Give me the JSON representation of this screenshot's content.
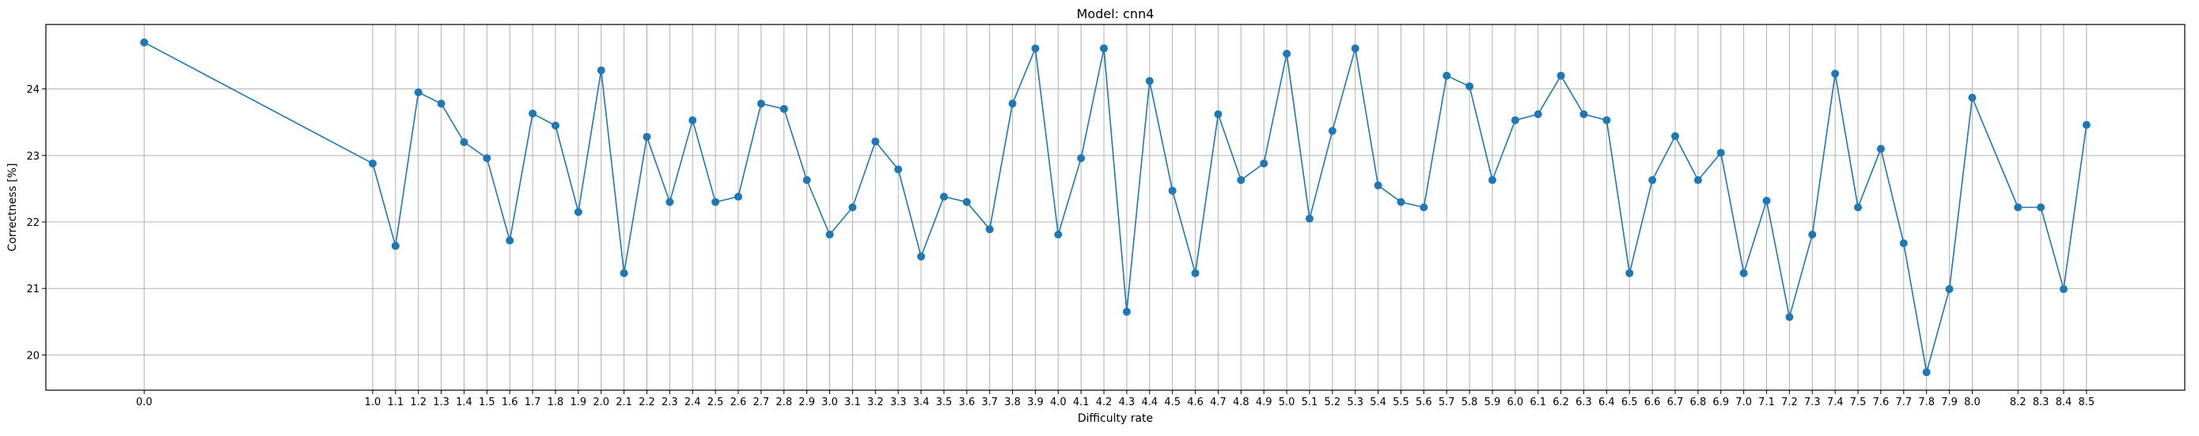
{
  "chart_data": {
    "type": "line",
    "title": "Model: cnn4",
    "xlabel": "Difficulty rate",
    "ylabel": "Correctness [%]",
    "xlim": [
      -0.43,
      8.93
    ],
    "ylim": [
      19.47,
      24.97
    ],
    "xticks": [
      "0.0",
      "1.0",
      "1.1",
      "1.2",
      "1.3",
      "1.4",
      "1.5",
      "1.6",
      "1.7",
      "1.8",
      "1.9",
      "2.0",
      "2.1",
      "2.2",
      "2.3",
      "2.4",
      "2.5",
      "2.6",
      "2.7",
      "2.8",
      "2.9",
      "3.0",
      "3.1",
      "3.2",
      "3.3",
      "3.4",
      "3.5",
      "3.6",
      "3.7",
      "3.8",
      "3.9",
      "4.0",
      "4.1",
      "4.2",
      "4.3",
      "4.4",
      "4.5",
      "4.6",
      "4.7",
      "4.8",
      "4.9",
      "5.0",
      "5.1",
      "5.2",
      "5.3",
      "5.4",
      "5.5",
      "5.6",
      "5.7",
      "5.8",
      "5.9",
      "6.0",
      "6.1",
      "6.2",
      "6.3",
      "6.4",
      "6.5",
      "6.6",
      "6.7",
      "6.8",
      "6.9",
      "7.0",
      "7.1",
      "7.2",
      "7.3",
      "7.4",
      "7.5",
      "7.6",
      "7.7",
      "7.8",
      "7.9",
      "8.0",
      "8.2",
      "8.3",
      "8.4",
      "8.5"
    ],
    "yticks": [
      "20",
      "21",
      "22",
      "23",
      "24"
    ],
    "grid": true,
    "color": "#1f77b4",
    "series": [
      {
        "x": [
          0.0,
          1.0,
          1.1,
          1.2,
          1.3,
          1.4,
          1.5,
          1.6,
          1.7,
          1.8,
          1.9,
          2.0,
          2.1,
          2.2,
          2.3,
          2.4,
          2.5,
          2.6,
          2.7,
          2.8,
          2.9,
          3.0,
          3.1,
          3.2,
          3.3,
          3.4,
          3.5,
          3.6,
          3.7,
          3.8,
          3.9,
          4.0,
          4.1,
          4.2,
          4.3,
          4.4,
          4.5,
          4.6,
          4.7,
          4.8,
          4.9,
          5.0,
          5.1,
          5.2,
          5.3,
          5.4,
          5.5,
          5.6,
          5.7,
          5.8,
          5.9,
          6.0,
          6.1,
          6.2,
          6.3,
          6.4,
          6.5,
          6.6,
          6.7,
          6.8,
          6.9,
          7.0,
          7.1,
          7.2,
          7.3,
          7.4,
          7.5,
          7.6,
          7.7,
          7.8,
          7.9,
          8.0,
          8.2,
          8.3,
          8.4,
          8.5
        ],
        "y": [
          24.7,
          22.88,
          21.64,
          23.95,
          23.78,
          23.2,
          22.96,
          21.72,
          23.63,
          23.45,
          22.15,
          24.28,
          21.23,
          23.28,
          22.3,
          23.53,
          22.3,
          22.38,
          23.78,
          23.7,
          22.63,
          21.81,
          22.22,
          23.21,
          22.79,
          21.48,
          22.38,
          22.3,
          21.89,
          23.78,
          24.61,
          21.81,
          22.96,
          24.61,
          20.65,
          24.12,
          22.47,
          21.23,
          23.62,
          22.63,
          22.88,
          24.53,
          22.05,
          23.37,
          24.61,
          22.55,
          22.3,
          22.22,
          24.2,
          24.04,
          22.63,
          23.53,
          23.62,
          24.2,
          23.62,
          23.53,
          21.23,
          22.63,
          23.29,
          22.63,
          23.04,
          21.23,
          22.32,
          20.57,
          21.81,
          24.23,
          22.22,
          23.1,
          21.68,
          19.74,
          20.99,
          23.87,
          22.22,
          22.22,
          20.99,
          23.46
        ]
      }
    ]
  }
}
